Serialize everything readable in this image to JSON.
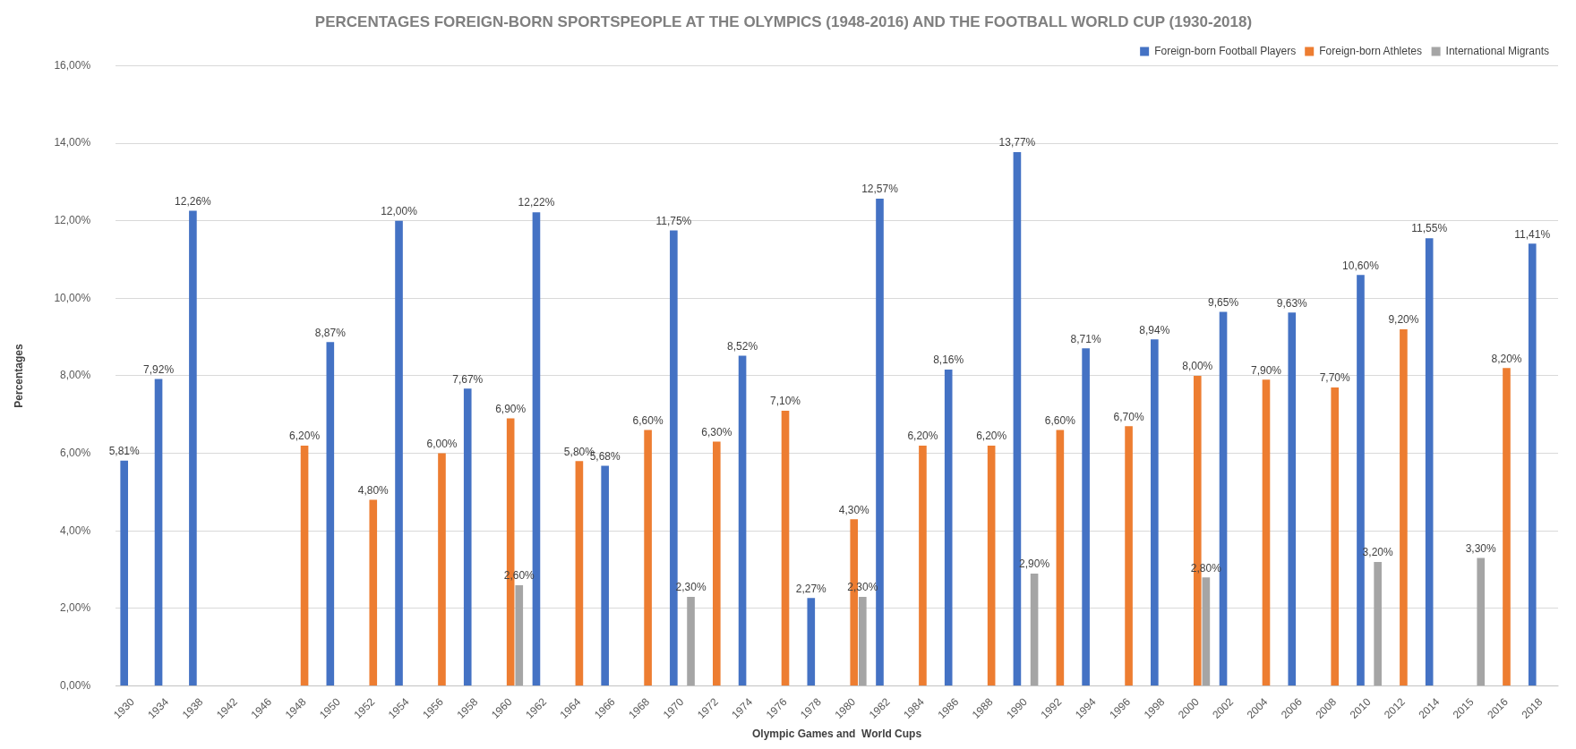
{
  "chart_data": {
    "type": "bar",
    "title": "PERCENTAGES FOREIGN-BORN SPORTSPEOPLE AT THE OLYMPICS (1948-2016) AND THE FOOTBALL WORLD CUP (1930-2018)",
    "xlabel": "Olympic Games and  World Cups",
    "ylabel": "Percentages",
    "categories": [
      "1930",
      "1934",
      "1938",
      "1942",
      "1946",
      "1948",
      "1950",
      "1952",
      "1954",
      "1956",
      "1958",
      "1960",
      "1962",
      "1964",
      "1966",
      "1968",
      "1970",
      "1972",
      "1974",
      "1976",
      "1978",
      "1980",
      "1982",
      "1984",
      "1986",
      "1988",
      "1990",
      "1992",
      "1994",
      "1996",
      "1998",
      "2000",
      "2002",
      "2004",
      "2006",
      "2008",
      "2010",
      "2012",
      "2014",
      "2015",
      "2016",
      "2018"
    ],
    "series": [
      {
        "name": "Foreign-born Football Players",
        "color": "#4472c4",
        "values": [
          5.81,
          7.92,
          12.26,
          null,
          null,
          null,
          8.87,
          null,
          12.0,
          null,
          7.67,
          null,
          12.22,
          null,
          5.68,
          null,
          11.75,
          null,
          8.52,
          null,
          2.27,
          null,
          12.57,
          null,
          8.16,
          null,
          13.77,
          null,
          8.71,
          null,
          8.94,
          null,
          9.65,
          null,
          9.63,
          null,
          10.6,
          null,
          11.55,
          null,
          null,
          11.41
        ],
        "value_labels": [
          "5,81%",
          "7,92%",
          "12,26%",
          null,
          null,
          null,
          "8,87%",
          null,
          "12,00%",
          null,
          "7,67%",
          null,
          "12,22%",
          null,
          "5,68%",
          null,
          "11,75%",
          null,
          "8,52%",
          null,
          "2,27%",
          null,
          "12,57%",
          null,
          "8,16%",
          null,
          "13,77%",
          null,
          "8,71%",
          null,
          "8,94%",
          null,
          "9,65%",
          null,
          "9,63%",
          null,
          "10,60%",
          null,
          "11,55%",
          null,
          null,
          "11,41%"
        ]
      },
      {
        "name": "Foreign-born Athletes",
        "color": "#ed7d31",
        "values": [
          null,
          null,
          null,
          null,
          null,
          6.2,
          null,
          4.8,
          null,
          6.0,
          null,
          6.9,
          null,
          5.8,
          null,
          6.6,
          null,
          6.3,
          null,
          7.1,
          null,
          4.3,
          null,
          6.2,
          null,
          6.2,
          null,
          6.6,
          null,
          6.7,
          null,
          8.0,
          null,
          7.9,
          null,
          7.7,
          null,
          9.2,
          null,
          null,
          8.2,
          null
        ],
        "value_labels": [
          null,
          null,
          null,
          null,
          null,
          "6,20%",
          null,
          "4,80%",
          null,
          "6,00%",
          null,
          "6,90%",
          null,
          "5,80%",
          null,
          "6,60%",
          null,
          "6,30%",
          null,
          "7,10%",
          null,
          "4,30%",
          null,
          "6,20%",
          null,
          "6,20%",
          null,
          "6,60%",
          null,
          "6,70%",
          null,
          "8,00%",
          null,
          "7,90%",
          null,
          "7,70%",
          null,
          "9,20%",
          null,
          null,
          "8,20%",
          null
        ]
      },
      {
        "name": "International Migrants",
        "color": "#a5a5a5",
        "values": [
          null,
          null,
          null,
          null,
          null,
          null,
          null,
          null,
          null,
          null,
          null,
          2.6,
          null,
          null,
          null,
          null,
          2.3,
          null,
          null,
          null,
          null,
          2.3,
          null,
          null,
          null,
          null,
          2.9,
          null,
          null,
          null,
          null,
          2.8,
          null,
          null,
          null,
          null,
          3.2,
          null,
          null,
          3.3,
          null,
          null
        ],
        "value_labels": [
          null,
          null,
          null,
          null,
          null,
          null,
          null,
          null,
          null,
          null,
          null,
          "2,60%",
          null,
          null,
          null,
          null,
          "2,30%",
          null,
          null,
          null,
          null,
          "2,30%",
          null,
          null,
          null,
          null,
          "2,90%",
          null,
          null,
          null,
          null,
          "2,80%",
          null,
          null,
          null,
          null,
          "3,20%",
          null,
          null,
          "3,30%",
          null,
          null
        ]
      }
    ],
    "ylim": [
      0,
      16
    ],
    "yticks": [
      {
        "value": 0,
        "label": "0,00%"
      },
      {
        "value": 2,
        "label": "2,00%"
      },
      {
        "value": 4,
        "label": "4,00%"
      },
      {
        "value": 6,
        "label": "6,00%"
      },
      {
        "value": 8,
        "label": "8,00%"
      },
      {
        "value": 10,
        "label": "10,00%"
      },
      {
        "value": 12,
        "label": "12,00%"
      },
      {
        "value": 14,
        "label": "14,00%"
      },
      {
        "value": 16,
        "label": "16,00%"
      }
    ],
    "grid": "y",
    "legend": "top right"
  }
}
